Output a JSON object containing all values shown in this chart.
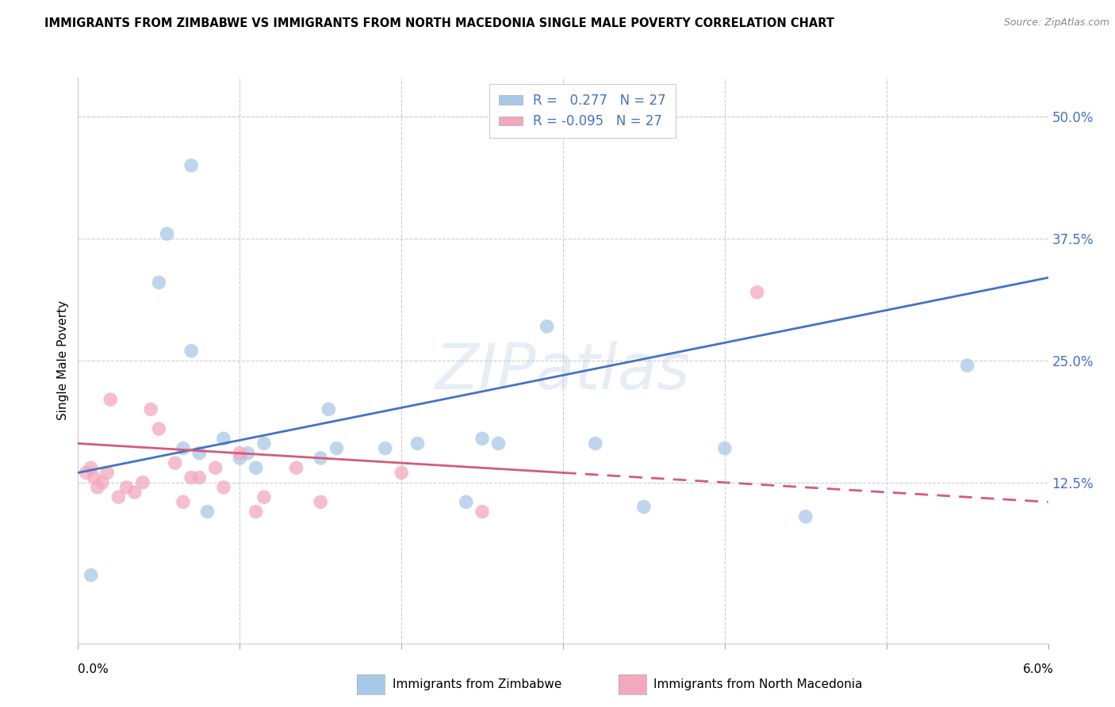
{
  "title": "IMMIGRANTS FROM ZIMBABWE VS IMMIGRANTS FROM NORTH MACEDONIA SINGLE MALE POVERTY CORRELATION CHART",
  "source": "Source: ZipAtlas.com",
  "ylabel": "Single Male Poverty",
  "xlim": [
    0.0,
    6.0
  ],
  "ylim": [
    -4.0,
    54.0
  ],
  "yticks": [
    0.0,
    12.5,
    25.0,
    37.5,
    50.0
  ],
  "background_color": "#ffffff",
  "watermark": "ZIPatlas",
  "legend_label1": "Immigrants from Zimbabwe",
  "legend_label2": "Immigrants from North Macedonia",
  "color_zimbabwe": "#a8c8e8",
  "color_macedonia": "#f4a8bc",
  "color_zim_line": "#4472c4",
  "color_mac_line": "#d45b7a",
  "zimbabwe_x": [
    0.08,
    0.5,
    0.55,
    0.65,
    0.7,
    0.75,
    0.8,
    0.9,
    1.0,
    1.05,
    1.1,
    1.15,
    1.5,
    1.55,
    1.6,
    1.9,
    2.1,
    2.4,
    2.5,
    2.6,
    2.9,
    3.2,
    3.5,
    4.0,
    4.5,
    5.5,
    0.7
  ],
  "zimbabwe_y": [
    3.0,
    33.0,
    38.0,
    16.0,
    45.0,
    15.5,
    9.5,
    17.0,
    15.0,
    15.5,
    14.0,
    16.5,
    15.0,
    20.0,
    16.0,
    16.0,
    16.5,
    10.5,
    17.0,
    16.5,
    28.5,
    16.5,
    10.0,
    16.0,
    9.0,
    24.5,
    26.0
  ],
  "macedonia_x": [
    0.05,
    0.08,
    0.1,
    0.12,
    0.15,
    0.18,
    0.2,
    0.25,
    0.3,
    0.35,
    0.4,
    0.45,
    0.5,
    0.6,
    0.65,
    0.7,
    0.75,
    0.85,
    0.9,
    1.0,
    1.1,
    1.15,
    1.35,
    1.5,
    2.0,
    2.5,
    4.2
  ],
  "macedonia_y": [
    13.5,
    14.0,
    13.0,
    12.0,
    12.5,
    13.5,
    21.0,
    11.0,
    12.0,
    11.5,
    12.5,
    20.0,
    18.0,
    14.5,
    10.5,
    13.0,
    13.0,
    14.0,
    12.0,
    15.5,
    9.5,
    11.0,
    14.0,
    10.5,
    13.5,
    9.5,
    32.0
  ],
  "line_zim_x0": 0.0,
  "line_zim_x1": 6.0,
  "line_zim_y0": 13.5,
  "line_zim_y1": 33.5,
  "line_mac_x0": 0.0,
  "line_mac_x1": 6.0,
  "line_mac_y0": 16.5,
  "line_mac_y1": 10.5,
  "line_mac_solid_end": 3.0
}
